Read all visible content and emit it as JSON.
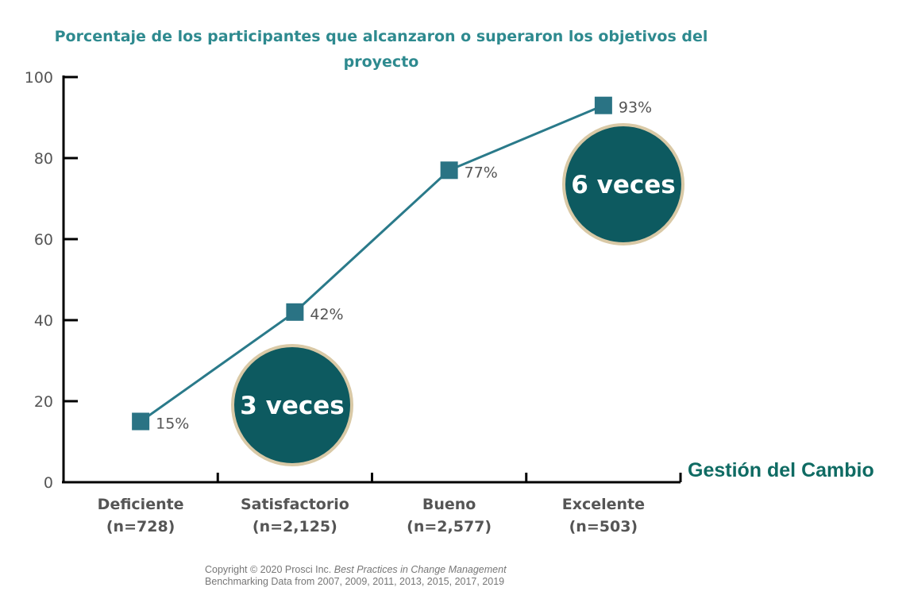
{
  "chart_data": {
    "type": "line",
    "title": "Porcentaje de los participantes que alcanzaron o superaron los objetivos del proyecto",
    "xlabel": "Gestión del Cambio",
    "ylabel": "",
    "categories": [
      "Deficiente\n(n=728)",
      "Satisfactorio\n(n=2,125)",
      "Bueno\n(n=2,577)",
      "Excelente\n(n=503)"
    ],
    "category_names": [
      "Deficiente",
      "Satisfactorio",
      "Bueno",
      "Excelente"
    ],
    "category_counts": [
      "(n=728)",
      "(n=2,125)",
      "(n=2,577)",
      "(n=503)"
    ],
    "values": [
      15,
      42,
      77,
      93
    ],
    "data_labels": [
      "15%",
      "42%",
      "77%",
      "93%"
    ],
    "ylim": [
      0,
      100
    ],
    "yticks": [
      0,
      20,
      40,
      60,
      80,
      100
    ],
    "grid": false,
    "annotations": [
      "3 veces",
      "6 veces"
    ],
    "colors": {
      "line": "#2a7a8a",
      "marker": "#2a7384",
      "bubble": "#0d5a60",
      "bubble_ring": "#d9c9a6",
      "title": "#2e8a8f"
    }
  },
  "copyright": {
    "line1_prefix": "Copyright © 2020 Prosci Inc. ",
    "line1_italic": "Best Practices in Change Management",
    "line2": "Benchmarking Data from 2007, 2009, 2011, 2013, 2015, 2017, 2019"
  }
}
